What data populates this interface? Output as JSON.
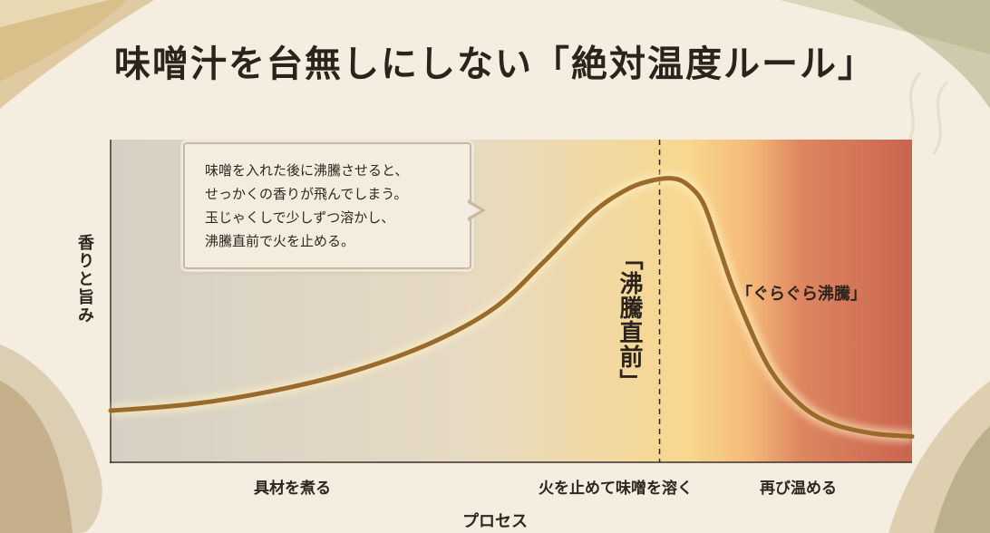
{
  "title": "味噌汁を台無しにしない「絶対温度ルール」",
  "callout": {
    "lines": [
      "味噌を入れた後に沸騰させると、",
      "せっかくの香りが飛んでしまう。",
      "玉じゃくしで少しずつ溶かし、",
      "沸騰直前で火を止める。"
    ]
  },
  "colors": {
    "curve": "#9a6a2a",
    "zone_cool": "#d8d2c6",
    "zone_warm": "#f7d07a",
    "zone_hot": "#cc6a52",
    "background": "#f5ede0"
  },
  "chart_data": {
    "type": "line",
    "title": "味噌汁を台無しにしない「絶対温度ルール」",
    "xlabel": "プロセス",
    "ylabel": "香りと旨み",
    "x_ticks": [
      "具材を煮る",
      "火を止めて味噌を溶く",
      "再び温める"
    ],
    "xlim": [
      0,
      100
    ],
    "ylim": [
      0,
      100
    ],
    "grid": false,
    "legend": "none",
    "series": [
      {
        "x": [
          0,
          10,
          20,
          30,
          40,
          48,
          54,
          60,
          64,
          67,
          70,
          72,
          74,
          76,
          78,
          82,
          86,
          90,
          95,
          100
        ],
        "y": [
          16,
          18,
          22,
          28,
          37,
          48,
          62,
          77,
          84,
          87,
          88,
          86,
          80,
          66,
          52,
          30,
          18,
          12,
          9,
          8
        ]
      }
    ],
    "marker": {
      "x": 68.5,
      "label_vertical": "「沸騰直前」"
    },
    "annotations": [
      {
        "text": "「ぐらぐら沸騰」"
      }
    ]
  }
}
